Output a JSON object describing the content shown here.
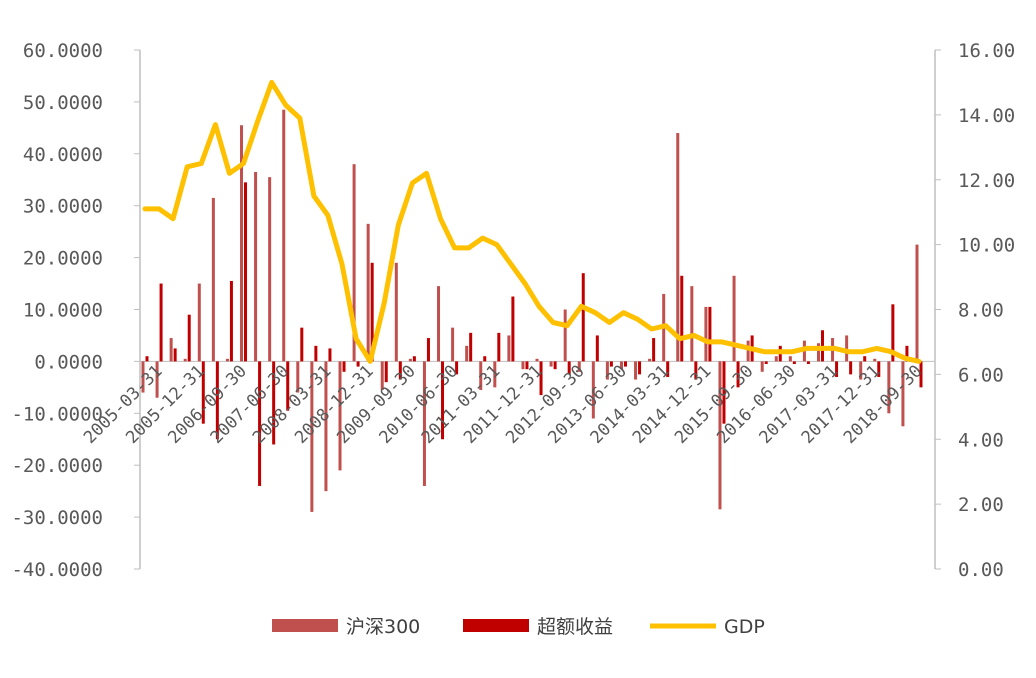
{
  "chart_data": {
    "type": "bar",
    "title": "",
    "xlabel": "",
    "ylabel_left": "",
    "ylabel_right": "",
    "ylim_left": [
      -40,
      60
    ],
    "ylim_right": [
      0,
      16
    ],
    "y_ticks_left": [
      "60.0000",
      "50.0000",
      "40.0000",
      "30.0000",
      "20.0000",
      "10.0000",
      "0.0000",
      "-10.0000",
      "-20.0000",
      "-30.0000",
      "-40.0000"
    ],
    "y_ticks_right": [
      "16.00",
      "14.00",
      "12.00",
      "10.00",
      "8.00",
      "6.00",
      "4.00",
      "2.00",
      "0.00"
    ],
    "x_tick_labels": [
      {
        "label": "2005-03-31",
        "index": 0
      },
      {
        "label": "2005-12-31",
        "index": 3
      },
      {
        "label": "2006-09-30",
        "index": 6
      },
      {
        "label": "2007-06-30",
        "index": 9
      },
      {
        "label": "2008-03-31",
        "index": 12
      },
      {
        "label": "2008-12-31",
        "index": 15
      },
      {
        "label": "2009-09-30",
        "index": 18
      },
      {
        "label": "2010-06-30",
        "index": 21
      },
      {
        "label": "2011-03-31",
        "index": 24
      },
      {
        "label": "2011-12-31",
        "index": 27
      },
      {
        "label": "2012-09-30",
        "index": 30
      },
      {
        "label": "2013-06-30",
        "index": 33
      },
      {
        "label": "2014-03-31",
        "index": 36
      },
      {
        "label": "2014-12-31",
        "index": 39
      },
      {
        "label": "2015-09-30",
        "index": 42
      },
      {
        "label": "2016-06-30",
        "index": 45
      },
      {
        "label": "2017-03-31",
        "index": 48
      },
      {
        "label": "2017-12-31",
        "index": 51
      },
      {
        "label": "2018-09-30",
        "index": 54
      }
    ],
    "legend_placement": "bottom",
    "series": [
      {
        "name": "沪深300",
        "type": "bar",
        "axis": "left",
        "color": "#c0504d",
        "values": [
          -6,
          -7,
          4.5,
          0.5,
          15,
          31.5,
          0.5,
          45.5,
          36.5,
          35.5,
          48.5,
          -6,
          -29,
          -25,
          -21,
          38,
          26.5,
          -5.5,
          19,
          0.5,
          -24,
          14.5,
          6.5,
          3,
          -5.5,
          -5,
          5,
          -1.5,
          0.5,
          -1,
          10,
          -2,
          -11,
          -3.5,
          -1.5,
          -3.5,
          0.5,
          13,
          44,
          14.5,
          10.5,
          -28.5,
          16.5,
          4,
          -2,
          1,
          1,
          4,
          3.5,
          4.5,
          5,
          -3.5,
          0.5,
          -10,
          -12.5,
          22.5
        ]
      },
      {
        "name": "超额收益",
        "type": "bar",
        "axis": "left",
        "color": "#c00000",
        "values": [
          1,
          15,
          2.5,
          9,
          -12,
          -15,
          15.5,
          34.5,
          -24,
          -16,
          -9.5,
          6.5,
          3,
          2.5,
          -2,
          -1,
          19,
          -4,
          -3.5,
          1,
          4.5,
          -15,
          -2.5,
          5.5,
          1,
          5.5,
          12.5,
          -1.5,
          -6.5,
          -1.5,
          -2.5,
          17,
          5,
          -1,
          -1,
          -2.5,
          4.5,
          -3,
          16.5,
          -3.5,
          10.5,
          -12,
          -5,
          5,
          -0.5,
          3,
          -0.5,
          -0.5,
          6,
          -3,
          -2.5,
          1,
          -3,
          11,
          3,
          -5
        ]
      },
      {
        "name": "GDP",
        "type": "line",
        "axis": "right",
        "color": "#ffc000",
        "values": [
          11.1,
          11.1,
          10.8,
          12.4,
          12.5,
          13.7,
          12.2,
          12.5,
          13.8,
          15.0,
          14.3,
          13.9,
          11.5,
          10.9,
          9.4,
          7.1,
          6.4,
          8.2,
          10.6,
          11.9,
          12.2,
          10.8,
          9.9,
          9.9,
          10.2,
          10.0,
          9.4,
          8.8,
          8.1,
          7.6,
          7.5,
          8.1,
          7.9,
          7.6,
          7.9,
          7.7,
          7.4,
          7.5,
          7.1,
          7.2,
          7.0,
          7.0,
          6.9,
          6.8,
          6.7,
          6.7,
          6.7,
          6.8,
          6.8,
          6.8,
          6.7,
          6.7,
          6.8,
          6.7,
          6.5,
          6.4
        ]
      }
    ]
  }
}
